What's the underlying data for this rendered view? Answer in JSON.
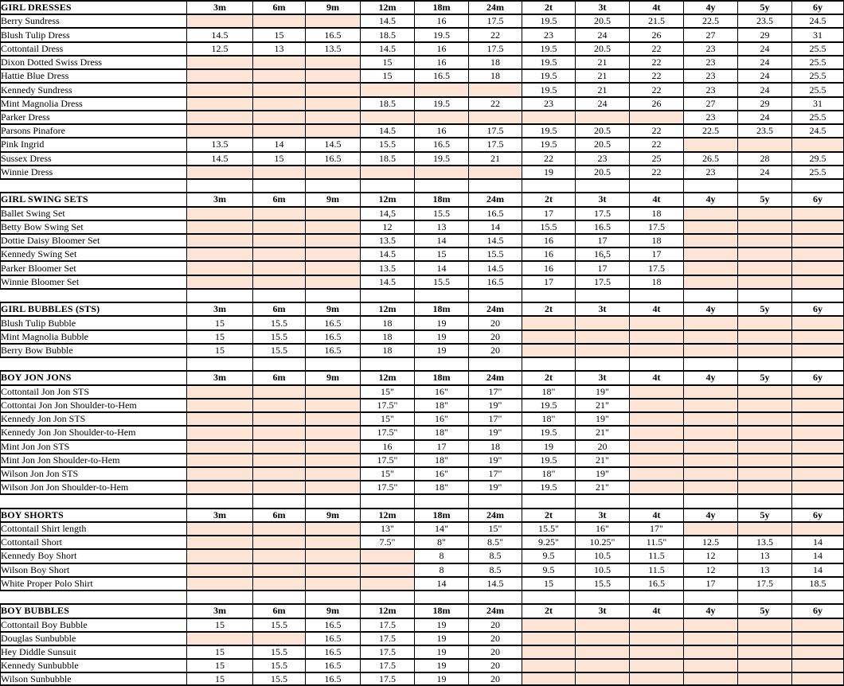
{
  "colors": {
    "shaded_cell": "#FCE4D6",
    "grid_line": "#000000",
    "highlight_line": "#C9C9C9",
    "page_background": "#FFFFFF"
  },
  "table": {
    "columns": [
      "3m",
      "6m",
      "9m",
      "12m",
      "18m",
      "24m",
      "2t",
      "3t",
      "4t",
      "4y",
      "5y",
      "6y"
    ],
    "sections": [
      {
        "title": "GIRL DRESSES",
        "rows": [
          {
            "label": "Berry Sundress",
            "values": [
              "",
              "",
              "",
              "14.5",
              "16",
              "17.5",
              "19.5",
              "20.5",
              "21.5",
              "22.5",
              "23.5",
              "24.5"
            ]
          },
          {
            "label": "Blush Tulip Dress",
            "values": [
              "14.5",
              "15",
              "16.5",
              "18.5",
              "19.5",
              "22",
              "23",
              "24",
              "26",
              "27",
              "29",
              "31"
            ]
          },
          {
            "label": "Cottontail Dress",
            "values": [
              "12.5",
              "13",
              "13.5",
              "14.5",
              "16",
              "17.5",
              "19.5",
              "20.5",
              "22",
              "23",
              "24",
              "25.5"
            ]
          },
          {
            "label": "Dixon Dotted Swiss Dress",
            "values": [
              "",
              "",
              "",
              "15",
              "16",
              "18",
              "19.5",
              "21",
              "22",
              "23",
              "24",
              "25.5"
            ]
          },
          {
            "label": "Hattie Blue Dress",
            "values": [
              "",
              "",
              "",
              "15",
              "16.5",
              "18",
              "19.5",
              "21",
              "22",
              "23",
              "24",
              "25.5"
            ]
          },
          {
            "label": "Kennedy Sundress",
            "values": [
              "",
              "",
              "",
              "",
              "",
              "",
              "19.5",
              "21",
              "22",
              "23",
              "24",
              "25.5"
            ]
          },
          {
            "label": "Mint Magnolia Dress",
            "values": [
              "",
              "",
              "",
              "18.5",
              "19.5",
              "22",
              "23",
              "24",
              "26",
              "27",
              "29",
              "31"
            ]
          },
          {
            "label": "Parker Dress",
            "values": [
              "",
              "",
              "",
              "",
              "",
              "",
              "",
              "",
              "",
              "23",
              "24",
              "25.5"
            ]
          },
          {
            "label": "Parsons Pinafore",
            "values": [
              "",
              "",
              "",
              "14.5",
              "16",
              "17.5",
              "19.5",
              "20.5",
              "22",
              "22.5",
              "23.5",
              "24.5"
            ]
          },
          {
            "label": "Pink Ingrid",
            "values": [
              "13.5",
              "14",
              "14.5",
              "15.5",
              "16.5",
              "17.5",
              "19.5",
              "20.5",
              "22",
              "",
              "",
              ""
            ]
          },
          {
            "label": "Sussex Dress",
            "values": [
              "14.5",
              "15",
              "16.5",
              "18.5",
              "19.5",
              "21",
              "22",
              "23",
              "25",
              "26.5",
              "28",
              "29.5"
            ]
          },
          {
            "label": "Winnie Dress",
            "values": [
              "",
              "",
              "",
              "",
              "",
              "",
              "19",
              "20.5",
              "22",
              "23",
              "24",
              "25.5"
            ]
          }
        ]
      },
      {
        "title": "GIRL SWING SETS",
        "rows": [
          {
            "label": "Ballet Swing Set",
            "values": [
              "",
              "",
              "",
              "14,5",
              "15.5",
              "16.5",
              "17",
              "17.5",
              "18",
              "",
              "",
              ""
            ]
          },
          {
            "label": "Betty Bow Swing Set",
            "values": [
              "",
              "",
              "",
              "12",
              "13",
              "14",
              "15.5",
              "16.5",
              "17.5",
              "",
              "",
              ""
            ]
          },
          {
            "label": "Dottie Daisy Bloomer Set",
            "values": [
              "",
              "",
              "",
              "13.5",
              "14",
              "14.5",
              "16",
              "17",
              "18",
              "",
              "",
              ""
            ]
          },
          {
            "label": "Kennedy Swing Set",
            "values": [
              "",
              "",
              "",
              "14.5",
              "15",
              "15.5",
              "16",
              "16,5",
              "17",
              "",
              "",
              ""
            ]
          },
          {
            "label": "Parker Bloomer Set",
            "values": [
              "",
              "",
              "",
              "13.5",
              "14",
              "14.5",
              "16",
              "17",
              "17.5",
              "",
              "",
              ""
            ]
          },
          {
            "label": "Winnie Bloomer Set",
            "values": [
              "",
              "",
              "",
              "14.5",
              "15.5",
              "16.5",
              "17",
              "17.5",
              "18",
              "",
              "",
              ""
            ]
          }
        ]
      },
      {
        "title": "GIRL BUBBLES (STS)",
        "rows": [
          {
            "label": "Blush Tulip Bubble",
            "values": [
              "15",
              "15.5",
              "16.5",
              "18",
              "19",
              "20",
              "",
              "",
              "",
              "",
              "",
              ""
            ]
          },
          {
            "label": "Mint Magnolia Bubble",
            "values": [
              "15",
              "15.5",
              "16.5",
              "18",
              "19",
              "20",
              "",
              "",
              "",
              "",
              "",
              ""
            ]
          },
          {
            "label": "Berry Bow Bubble",
            "values": [
              "15",
              "15.5",
              "16.5",
              "18",
              "19",
              "20",
              "",
              "",
              "",
              "",
              "",
              ""
            ]
          }
        ]
      },
      {
        "title": "BOY JON JONS",
        "rows": [
          {
            "label": "Cottontail Jon Jon STS",
            "values": [
              "",
              "",
              "",
              "15\"",
              "16\"",
              "17\"",
              "18\"",
              "19\"",
              "",
              "",
              "",
              ""
            ]
          },
          {
            "label": "Cottontai Jon Jon Shoulder-to-Hem",
            "values": [
              "",
              "",
              "",
              "17.5\"",
              "18\"",
              "19\"",
              "19.5",
              "21\"",
              "",
              "",
              "",
              ""
            ]
          },
          {
            "label": "Kennedy Jon Jon STS",
            "values": [
              "",
              "",
              "",
              "15\"",
              "16\"",
              "17\"",
              "18\"",
              "19\"",
              "",
              "",
              "",
              ""
            ]
          },
          {
            "label": "Kennedy Jon Jon Shoulder-to-Hem",
            "values": [
              "",
              "",
              "",
              "17.5\"",
              "18\"",
              "19\"",
              "19.5",
              "21\"",
              "",
              "",
              "",
              ""
            ]
          },
          {
            "label": "Mint Jon Jon STS",
            "values": [
              "",
              "",
              "",
              "16",
              "17",
              "18",
              "19",
              "20",
              "",
              "",
              "",
              ""
            ]
          },
          {
            "label": "Mint Jon Jon Shoulder-to-Hem",
            "values": [
              "",
              "",
              "",
              "17.5\"",
              "18\"",
              "19\"",
              "19.5",
              "21\"",
              "",
              "",
              "",
              ""
            ]
          },
          {
            "label": "Wilson Jon Jon STS",
            "values": [
              "",
              "",
              "",
              "15\"",
              "16\"",
              "17\"",
              "18\"",
              "19\"",
              "",
              "",
              "",
              ""
            ]
          },
          {
            "label": "Wilson Jon Jon Shoulder-to-Hem",
            "values": [
              "",
              "",
              "",
              "17.5\"",
              "18\"",
              "19\"",
              "19.5",
              "21\"",
              "",
              "",
              "",
              ""
            ]
          }
        ]
      },
      {
        "title": "BOY SHORTS",
        "rows": [
          {
            "label": "Cottontail Shirt length",
            "values": [
              "",
              "",
              "",
              "13\"",
              "14\"",
              "15\"",
              "15.5\"",
              "16\"",
              "17\"",
              "",
              "",
              ""
            ]
          },
          {
            "label": "Cottontail Short",
            "values": [
              "",
              "",
              "",
              "7.5\"",
              "8\"",
              "8.5\"",
              "9.25\"",
              "10.25\"",
              "11.5\"",
              "12.5",
              "13.5",
              "14"
            ]
          },
          {
            "label": "Kennedy Boy Short",
            "values": [
              "",
              "",
              "",
              "",
              "8",
              "8.5",
              "9.5",
              "10.5",
              "11.5",
              "12",
              "13",
              "14"
            ]
          },
          {
            "label": "Wilson Boy Short",
            "values": [
              "",
              "",
              "",
              "",
              "8",
              "8.5",
              "9.5",
              "10.5",
              "11.5",
              "12",
              "13",
              "14"
            ]
          },
          {
            "label": "White Proper Polo Shirt",
            "values": [
              "",
              "",
              "",
              "",
              "14",
              "14.5",
              "15",
              "15.5",
              "16.5",
              "17",
              "17.5",
              "18.5"
            ]
          }
        ]
      },
      {
        "title": "BOY BUBBLES",
        "rows": [
          {
            "label": "Cottontail Boy Bubble",
            "values": [
              "15",
              "15.5",
              "16.5",
              "17.5",
              "19",
              "20",
              "",
              "",
              "",
              "",
              "",
              ""
            ]
          },
          {
            "label": "Douglas Sunbubble",
            "values": [
              "",
              "",
              "16.5",
              "17.5",
              "19",
              "20",
              "",
              "",
              "",
              "",
              "",
              ""
            ]
          },
          {
            "label": "Hey Diddle Sunsuit",
            "values": [
              "15",
              "15.5",
              "16.5",
              "17.5",
              "19",
              "20",
              "",
              "",
              "",
              "",
              "",
              ""
            ]
          },
          {
            "label": "Kennedy Sunbubble",
            "values": [
              "15",
              "15.5",
              "16.5",
              "17.5",
              "19",
              "20",
              "",
              "",
              "",
              "",
              "",
              ""
            ]
          },
          {
            "label": "Wilson Sunbubble",
            "values": [
              "15",
              "15.5",
              "16.5",
              "17.5",
              "19",
              "20",
              "",
              "",
              "",
              "",
              "",
              ""
            ]
          }
        ]
      }
    ],
    "highlight": {
      "section_title": "BOY JON JONS",
      "row_label": "Kennedy Jon Jon STS",
      "col_start": "12m",
      "col_end": "3t"
    }
  }
}
